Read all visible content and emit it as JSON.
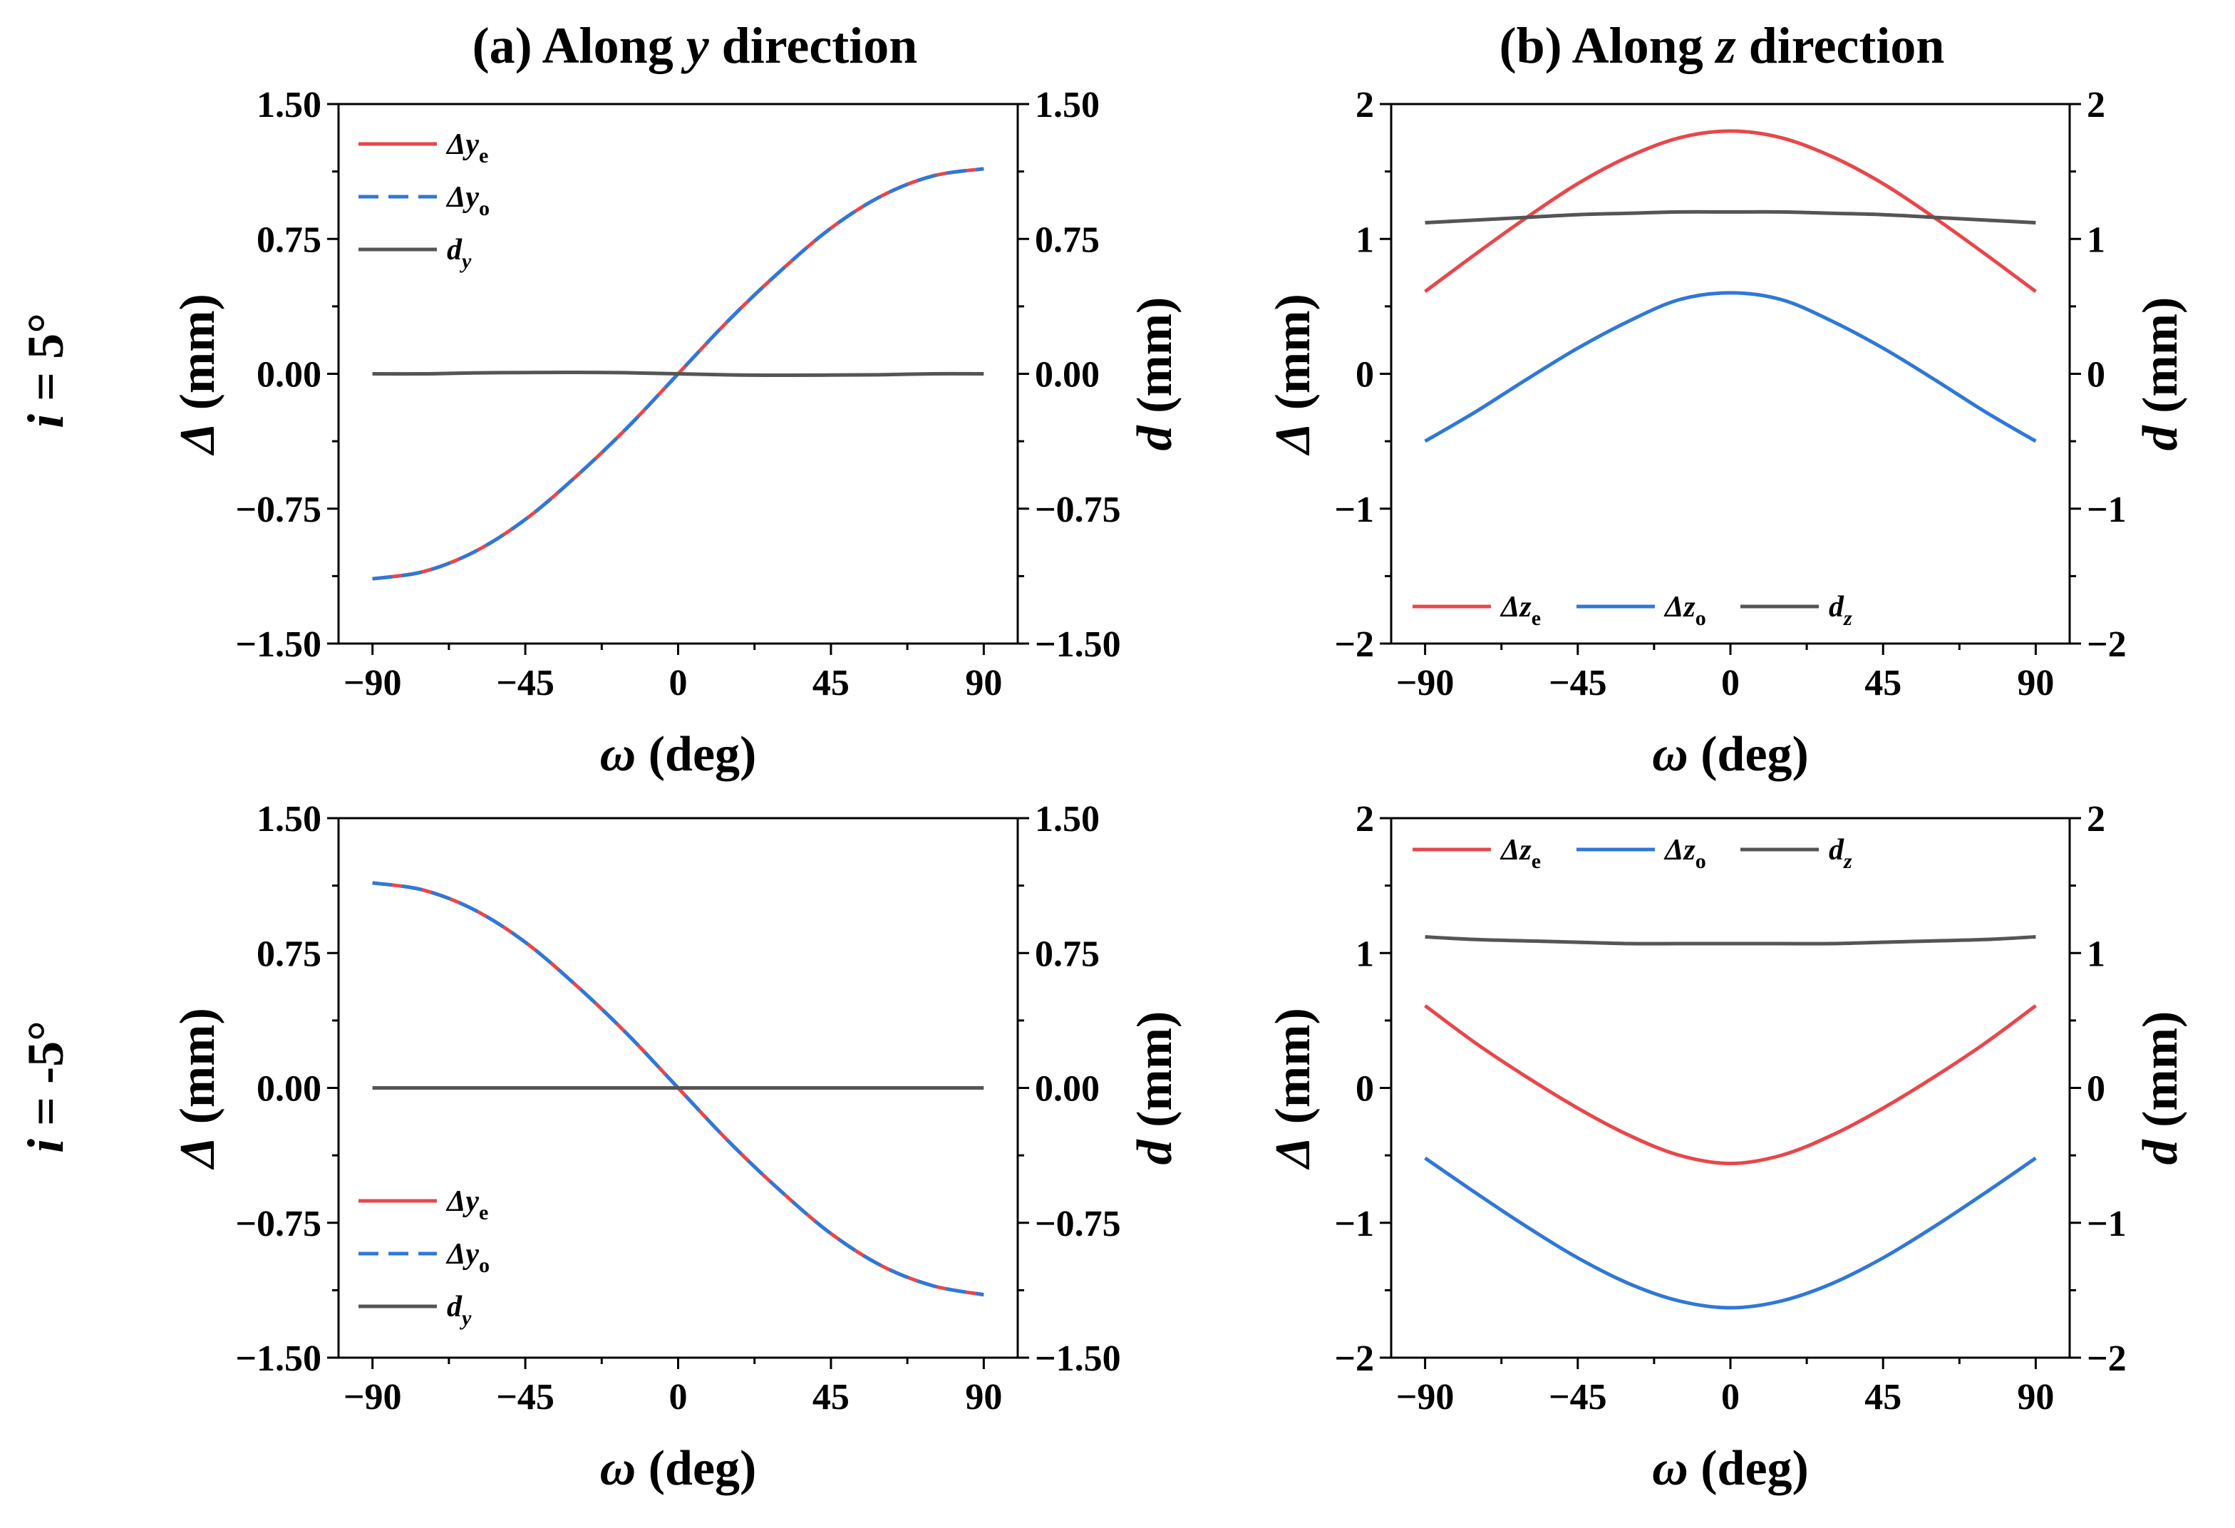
{
  "column_titles": [
    {
      "prefix": "(a) Along ",
      "var": "y",
      "suffix": " direction"
    },
    {
      "prefix": "(b) Along ",
      "var": "z",
      "suffix": " direction"
    }
  ],
  "row_labels": [
    {
      "lhs": "i",
      "rhs": " = 5°"
    },
    {
      "lhs": "i",
      "rhs": " = -5°"
    }
  ],
  "colors": {
    "red": "#e8474b",
    "blue": "#2f78d8",
    "gray": "#555555"
  },
  "chart_data": [
    {
      "id": "a-top",
      "type": "line",
      "xlabel": {
        "sym": "ω",
        "rest": " (deg)"
      },
      "ylabel_left": {
        "sym": "Δ",
        "rest": " (mm)"
      },
      "ylabel_right": {
        "sym": "d",
        "rest": " (mm)"
      },
      "xlim": [
        -100,
        100
      ],
      "ylim": [
        -1.5,
        1.5
      ],
      "xticks": [
        -90,
        -45,
        0,
        45,
        90
      ],
      "xtick_labels": [
        "−90",
        "−45",
        "0",
        "45",
        "90"
      ],
      "yticks": [
        1.5,
        0.75,
        0,
        -0.75,
        -1.5
      ],
      "ytick_labels": [
        "1.50",
        "0.75",
        "0.00",
        "−0.75",
        "−1.50"
      ],
      "x": [
        -90,
        -75,
        -60,
        -45,
        -30,
        -15,
        0,
        15,
        30,
        45,
        60,
        75,
        90
      ],
      "legend": {
        "placement": "top-left",
        "layout": "vertical"
      },
      "series": [
        {
          "name": "Δy",
          "sub": "e",
          "color": "red",
          "values": [
            -1.14,
            -1.1,
            -0.99,
            -0.81,
            -0.57,
            -0.3,
            0.0,
            0.3,
            0.57,
            0.81,
            0.99,
            1.1,
            1.14
          ]
        },
        {
          "name": "Δy",
          "sub": "o",
          "color": "blue",
          "dashed": true,
          "values": [
            -1.14,
            -1.1,
            -0.99,
            -0.81,
            -0.57,
            -0.3,
            0.0,
            0.3,
            0.57,
            0.81,
            0.99,
            1.1,
            1.14
          ]
        },
        {
          "name": "d",
          "sub": "y",
          "color": "gray",
          "values": [
            0.0,
            0.0,
            0.005,
            0.007,
            0.008,
            0.006,
            0.0,
            -0.006,
            -0.008,
            -0.007,
            -0.005,
            0.0,
            0.0
          ]
        }
      ]
    },
    {
      "id": "b-top",
      "type": "line",
      "xlabel": {
        "sym": "ω",
        "rest": " (deg)"
      },
      "ylabel_left": {
        "sym": "Δ",
        "rest": " (mm)"
      },
      "ylabel_right": {
        "sym": "d",
        "rest": " (mm)"
      },
      "xlim": [
        -100,
        100
      ],
      "ylim": [
        -2,
        2
      ],
      "xticks": [
        -90,
        -45,
        0,
        45,
        90
      ],
      "xtick_labels": [
        "−90",
        "−45",
        "0",
        "45",
        "90"
      ],
      "yticks": [
        2,
        1,
        0,
        -1,
        -2
      ],
      "ytick_labels": [
        "2",
        "1",
        "0",
        "−1",
        "−2"
      ],
      "x": [
        -90,
        -75,
        -60,
        -45,
        -30,
        -15,
        0,
        15,
        30,
        45,
        60,
        75,
        90
      ],
      "legend": {
        "placement": "bottom-left",
        "layout": "horizontal"
      },
      "series": [
        {
          "name": "Δz",
          "sub": "e",
          "color": "red",
          "values": [
            0.61,
            0.89,
            1.16,
            1.41,
            1.61,
            1.75,
            1.8,
            1.75,
            1.61,
            1.41,
            1.16,
            0.89,
            0.61
          ]
        },
        {
          "name": "Δz",
          "sub": "o",
          "color": "blue",
          "values": [
            -0.5,
            -0.28,
            -0.04,
            0.19,
            0.39,
            0.55,
            0.6,
            0.55,
            0.39,
            0.19,
            -0.04,
            -0.28,
            -0.5
          ]
        },
        {
          "name": "d",
          "sub": "z",
          "color": "gray",
          "values": [
            1.12,
            1.14,
            1.16,
            1.18,
            1.19,
            1.2,
            1.2,
            1.2,
            1.19,
            1.18,
            1.16,
            1.14,
            1.12
          ]
        }
      ]
    },
    {
      "id": "a-bottom",
      "type": "line",
      "xlabel": {
        "sym": "ω",
        "rest": " (deg)"
      },
      "ylabel_left": {
        "sym": "Δ",
        "rest": " (mm)"
      },
      "ylabel_right": {
        "sym": "d",
        "rest": " (mm)"
      },
      "xlim": [
        -100,
        100
      ],
      "ylim": [
        -1.5,
        1.5
      ],
      "xticks": [
        -90,
        -45,
        0,
        45,
        90
      ],
      "xtick_labels": [
        "−90",
        "−45",
        "0",
        "45",
        "90"
      ],
      "yticks": [
        1.5,
        0.75,
        0,
        -0.75,
        -1.5
      ],
      "ytick_labels": [
        "1.50",
        "0.75",
        "0.00",
        "−0.75",
        "−1.50"
      ],
      "x": [
        -90,
        -75,
        -60,
        -45,
        -30,
        -15,
        0,
        15,
        30,
        45,
        60,
        75,
        90
      ],
      "legend": {
        "placement": "bottom-left",
        "layout": "vertical"
      },
      "series": [
        {
          "name": "Δy",
          "sub": "e",
          "color": "red",
          "values": [
            1.14,
            1.1,
            0.99,
            0.81,
            0.57,
            0.3,
            0.0,
            -0.3,
            -0.57,
            -0.81,
            -0.99,
            -1.1,
            -1.15
          ]
        },
        {
          "name": "Δy",
          "sub": "o",
          "color": "blue",
          "dashed": true,
          "values": [
            1.14,
            1.1,
            0.99,
            0.81,
            0.57,
            0.3,
            0.0,
            -0.3,
            -0.57,
            -0.81,
            -0.99,
            -1.1,
            -1.15
          ]
        },
        {
          "name": "d",
          "sub": "y",
          "color": "gray",
          "values": [
            0.0,
            0.0,
            0.0,
            0.0,
            0.0,
            0.0,
            0.0,
            0.0,
            0.0,
            0.0,
            0.0,
            0.0,
            0.0
          ]
        }
      ]
    },
    {
      "id": "b-bottom",
      "type": "line",
      "xlabel": {
        "sym": "ω",
        "rest": " (deg)"
      },
      "ylabel_left": {
        "sym": "Δ",
        "rest": " (mm)"
      },
      "ylabel_right": {
        "sym": "d",
        "rest": " (mm)"
      },
      "xlim": [
        -100,
        100
      ],
      "ylim": [
        -2,
        2
      ],
      "xticks": [
        -90,
        -45,
        0,
        45,
        90
      ],
      "xtick_labels": [
        "−90",
        "−45",
        "0",
        "45",
        "90"
      ],
      "yticks": [
        2,
        1,
        0,
        -1,
        -2
      ],
      "ytick_labels": [
        "2",
        "1",
        "0",
        "−1",
        "−2"
      ],
      "x": [
        -90,
        -75,
        -60,
        -45,
        -30,
        -15,
        0,
        15,
        30,
        45,
        60,
        75,
        90
      ],
      "legend": {
        "placement": "top-left",
        "layout": "horizontal"
      },
      "series": [
        {
          "name": "Δz",
          "sub": "e",
          "color": "red",
          "values": [
            0.61,
            0.33,
            0.08,
            -0.15,
            -0.35,
            -0.5,
            -0.56,
            -0.5,
            -0.35,
            -0.15,
            0.08,
            0.33,
            0.61
          ]
        },
        {
          "name": "Δz",
          "sub": "o",
          "color": "blue",
          "values": [
            -0.52,
            -0.78,
            -1.03,
            -1.26,
            -1.45,
            -1.58,
            -1.63,
            -1.58,
            -1.45,
            -1.26,
            -1.03,
            -0.78,
            -0.52
          ]
        },
        {
          "name": "d",
          "sub": "z",
          "color": "gray",
          "values": [
            1.12,
            1.1,
            1.09,
            1.08,
            1.07,
            1.07,
            1.07,
            1.07,
            1.07,
            1.08,
            1.09,
            1.1,
            1.12
          ]
        }
      ]
    }
  ]
}
